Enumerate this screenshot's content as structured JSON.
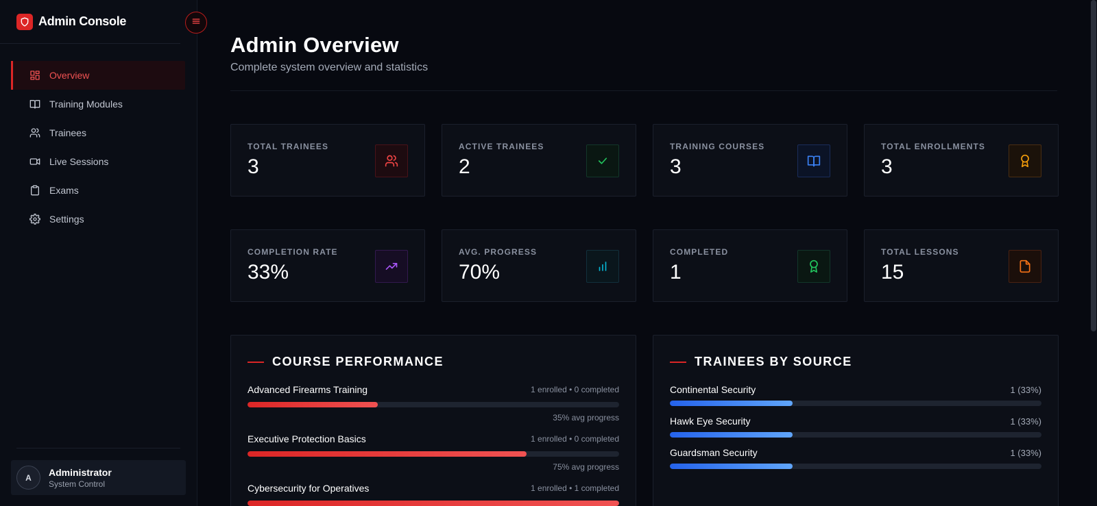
{
  "brand": {
    "title": "Admin Console"
  },
  "sidebar": {
    "items": [
      {
        "label": "Overview",
        "icon": "dashboard-icon",
        "active": true
      },
      {
        "label": "Training Modules",
        "icon": "book-icon",
        "active": false
      },
      {
        "label": "Trainees",
        "icon": "users-icon",
        "active": false
      },
      {
        "label": "Live Sessions",
        "icon": "video-icon",
        "active": false
      },
      {
        "label": "Exams",
        "icon": "clipboard-icon",
        "active": false
      },
      {
        "label": "Settings",
        "icon": "gear-icon",
        "active": false
      }
    ]
  },
  "user": {
    "initial": "A",
    "name": "Administrator",
    "role": "System Control"
  },
  "header": {
    "title": "Admin Overview",
    "subtitle": "Complete system overview and statistics"
  },
  "stats": [
    {
      "label": "TOTAL TRAINEES",
      "value": "3",
      "icon": "users-icon",
      "color": "#ef4444"
    },
    {
      "label": "ACTIVE TRAINEES",
      "value": "2",
      "icon": "check-icon",
      "color": "#22c55e"
    },
    {
      "label": "TRAINING COURSES",
      "value": "3",
      "icon": "book-open-icon",
      "color": "#3b82f6"
    },
    {
      "label": "TOTAL ENROLLMENTS",
      "value": "3",
      "icon": "award-icon",
      "color": "#f59e0b"
    },
    {
      "label": "COMPLETION RATE",
      "value": "33%",
      "icon": "trending-up-icon",
      "color": "#a855f7"
    },
    {
      "label": "AVG. PROGRESS",
      "value": "70%",
      "icon": "bar-chart-icon",
      "color": "#06b6d4"
    },
    {
      "label": "COMPLETED",
      "value": "1",
      "icon": "medal-icon",
      "color": "#22c55e"
    },
    {
      "label": "TOTAL LESSONS",
      "value": "15",
      "icon": "file-icon",
      "color": "#f97316"
    }
  ],
  "course_performance": {
    "title": "COURSE PERFORMANCE",
    "courses": [
      {
        "name": "Advanced Firearms Training",
        "meta": "1 enrolled • 0 completed",
        "progress": 35,
        "progress_label": "35% avg progress"
      },
      {
        "name": "Executive Protection Basics",
        "meta": "1 enrolled • 0 completed",
        "progress": 75,
        "progress_label": "75% avg progress"
      },
      {
        "name": "Cybersecurity for Operatives",
        "meta": "1 enrolled • 1 completed",
        "progress": 100,
        "progress_label": ""
      }
    ]
  },
  "trainees_by_source": {
    "title": "TRAINEES BY SOURCE",
    "sources": [
      {
        "name": "Continental Security",
        "count": "1 (33%)",
        "percent": 33
      },
      {
        "name": "Hawk Eye Security",
        "count": "1 (33%)",
        "percent": 33
      },
      {
        "name": "Guardsman Security",
        "count": "1 (33%)",
        "percent": 33
      }
    ]
  }
}
